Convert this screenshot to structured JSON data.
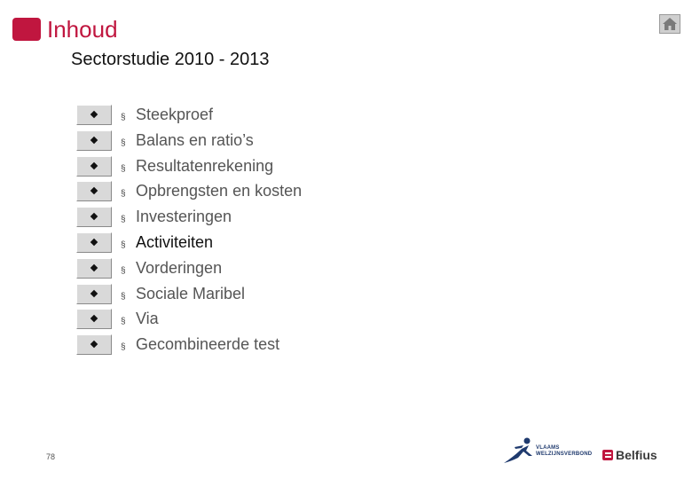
{
  "header": {
    "title": "Inhoud",
    "accent_color": "#c0163f"
  },
  "home_button": {
    "icon": "home-icon"
  },
  "subtitle": "Sectorstudie 2010 - 2013",
  "toc": {
    "items": [
      {
        "label": "Steekproef",
        "active": false
      },
      {
        "label": "Balans en ratio’s",
        "active": false
      },
      {
        "label": "Resultatenrekening",
        "active": false
      },
      {
        "label": "Opbrengsten en kosten",
        "active": false
      },
      {
        "label": "Investeringen",
        "active": false
      },
      {
        "label": "Activiteiten",
        "active": true
      },
      {
        "label": "Vorderingen",
        "active": false
      },
      {
        "label": "Sociale Maribel",
        "active": false
      },
      {
        "label": "Via",
        "active": false
      },
      {
        "label": "Gecombineerde test",
        "active": false
      }
    ],
    "bullet_glyph": "§"
  },
  "page_number": "78",
  "logos": {
    "vwv_line1": "VLAAMS",
    "vwv_line2": "WELZIJNSVERBOND",
    "belfius": "Belfius"
  }
}
